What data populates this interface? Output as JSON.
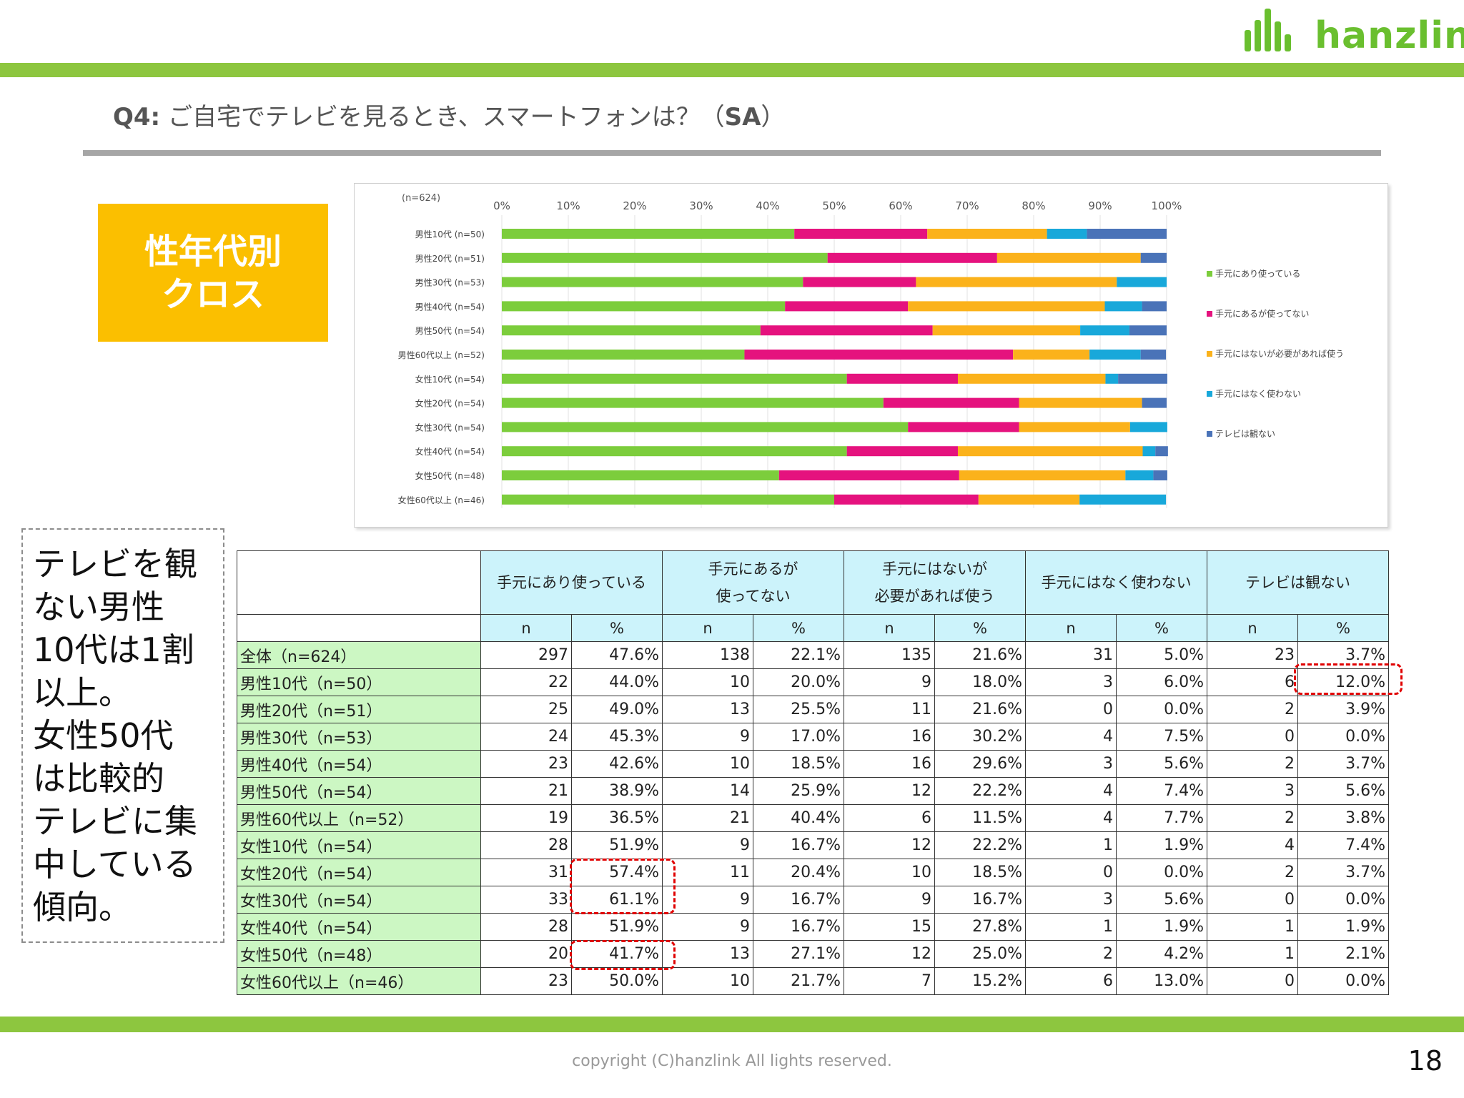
{
  "brand": {
    "name": "hanzlink"
  },
  "title": {
    "question": "Q4:",
    "text": "ご自宅でテレビを見るとき、スマートフォンは？（",
    "suffix": "SA",
    "close": "）"
  },
  "tag": {
    "text": "性年代別\nクロス"
  },
  "callout": {
    "text": "テレビを観\nない男性\n10代は1割\n以上。\n女性50代\nは比較的\nテレビに集\n中している\n傾向。"
  },
  "colors": {
    "accent_green": "#8dc63f",
    "tag_yellow": "#fbbf00",
    "highlight_red": "#e00000"
  },
  "chart_data": {
    "type": "bar",
    "orientation": "horizontal-stacked-100",
    "note": "(n=624)",
    "x_ticks": [
      "0%",
      "10%",
      "20%",
      "30%",
      "40%",
      "50%",
      "60%",
      "70%",
      "80%",
      "90%",
      "100%"
    ],
    "categories": [
      "男性10代 (n=50)",
      "男性20代 (n=51)",
      "男性30代 (n=53)",
      "男性40代 (n=54)",
      "男性50代 (n=54)",
      "男性60代以上 (n=52)",
      "女性10代 (n=54)",
      "女性20代 (n=54)",
      "女性30代 (n=54)",
      "女性40代 (n=54)",
      "女性50代 (n=48)",
      "女性60代以上 (n=46)"
    ],
    "series": [
      {
        "name": "手元にあり使っている",
        "color": "#7ccd3c",
        "values": [
          44.0,
          49.0,
          45.3,
          42.6,
          38.9,
          36.5,
          51.9,
          57.4,
          61.1,
          51.9,
          41.7,
          50.0
        ]
      },
      {
        "name": "手元にあるが使ってない",
        "color": "#e5127e",
        "values": [
          20.0,
          25.5,
          17.0,
          18.5,
          25.9,
          40.4,
          16.7,
          20.4,
          16.7,
          16.7,
          27.1,
          21.7
        ]
      },
      {
        "name": "手元にはないが必要があれば使う",
        "color": "#fbb21b",
        "values": [
          18.0,
          21.6,
          30.2,
          29.6,
          22.2,
          11.5,
          22.2,
          18.5,
          16.7,
          27.8,
          25.0,
          15.2
        ]
      },
      {
        "name": "手元にはなく使わない",
        "color": "#18a8da",
        "values": [
          6.0,
          0.0,
          7.5,
          5.6,
          7.4,
          7.7,
          1.9,
          0.0,
          5.6,
          1.9,
          4.2,
          13.0
        ]
      },
      {
        "name": "テレビは観ない",
        "color": "#4a73b8",
        "values": [
          12.0,
          3.9,
          0.0,
          3.7,
          5.6,
          3.8,
          7.4,
          3.7,
          0.0,
          1.9,
          2.1,
          0.0
        ]
      }
    ],
    "xlim": [
      0,
      100
    ],
    "legend": "right",
    "grid": true
  },
  "table": {
    "headers": [
      "手元にあり使っている",
      "手元にあるが\n使ってない",
      "手元にはないが\n必要があれば使う",
      "手元にはなく使わない",
      "テレビは観ない"
    ],
    "sub_n": "n",
    "sub_pct": "%",
    "rows": [
      {
        "label": "全体（n=624）",
        "cells": [
          "297",
          "47.6%",
          "138",
          "22.1%",
          "135",
          "21.6%",
          "31",
          "5.0%",
          "23",
          "3.7%"
        ]
      },
      {
        "label": "男性10代（n=50）",
        "cells": [
          "22",
          "44.0%",
          "10",
          "20.0%",
          "9",
          "18.0%",
          "3",
          "6.0%",
          "6",
          "12.0%"
        ]
      },
      {
        "label": "男性20代（n=51）",
        "cells": [
          "25",
          "49.0%",
          "13",
          "25.5%",
          "11",
          "21.6%",
          "0",
          "0.0%",
          "2",
          "3.9%"
        ]
      },
      {
        "label": "男性30代（n=53）",
        "cells": [
          "24",
          "45.3%",
          "9",
          "17.0%",
          "16",
          "30.2%",
          "4",
          "7.5%",
          "0",
          "0.0%"
        ]
      },
      {
        "label": "男性40代（n=54）",
        "cells": [
          "23",
          "42.6%",
          "10",
          "18.5%",
          "16",
          "29.6%",
          "3",
          "5.6%",
          "2",
          "3.7%"
        ]
      },
      {
        "label": "男性50代（n=54）",
        "cells": [
          "21",
          "38.9%",
          "14",
          "25.9%",
          "12",
          "22.2%",
          "4",
          "7.4%",
          "3",
          "5.6%"
        ]
      },
      {
        "label": "男性60代以上（n=52）",
        "cells": [
          "19",
          "36.5%",
          "21",
          "40.4%",
          "6",
          "11.5%",
          "4",
          "7.7%",
          "2",
          "3.8%"
        ]
      },
      {
        "label": "女性10代（n=54）",
        "cells": [
          "28",
          "51.9%",
          "9",
          "16.7%",
          "12",
          "22.2%",
          "1",
          "1.9%",
          "4",
          "7.4%"
        ]
      },
      {
        "label": "女性20代（n=54）",
        "cells": [
          "31",
          "57.4%",
          "11",
          "20.4%",
          "10",
          "18.5%",
          "0",
          "0.0%",
          "2",
          "3.7%"
        ]
      },
      {
        "label": "女性30代（n=54）",
        "cells": [
          "33",
          "61.1%",
          "9",
          "16.7%",
          "9",
          "16.7%",
          "3",
          "5.6%",
          "0",
          "0.0%"
        ]
      },
      {
        "label": "女性40代（n=54）",
        "cells": [
          "28",
          "51.9%",
          "9",
          "16.7%",
          "15",
          "27.8%",
          "1",
          "1.9%",
          "1",
          "1.9%"
        ]
      },
      {
        "label": "女性50代（n=48）",
        "cells": [
          "20",
          "41.7%",
          "13",
          "27.1%",
          "12",
          "25.0%",
          "2",
          "4.2%",
          "1",
          "2.1%"
        ]
      },
      {
        "label": "女性60代以上（n=46）",
        "cells": [
          "23",
          "50.0%",
          "10",
          "21.7%",
          "7",
          "15.2%",
          "6",
          "13.0%",
          "0",
          "0.0%"
        ]
      }
    ]
  },
  "footer": {
    "copyright": "copyright (C)hanzlink  All lights reserved.",
    "page": "18"
  }
}
